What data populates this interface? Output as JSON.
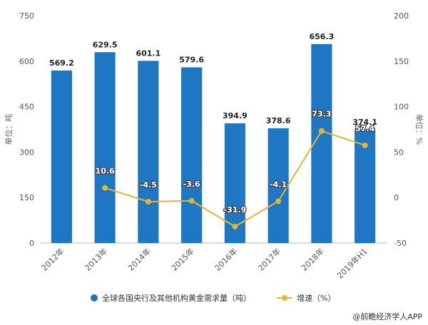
{
  "chart_data": {
    "type": "bar",
    "categories": [
      "2012年",
      "2013年",
      "2014年",
      "2015年",
      "2016年",
      "2017年",
      "2018年",
      "2019年H1"
    ],
    "series": [
      {
        "name": "全球各国央行及其他机构黄金需求量（吨）",
        "type": "bar",
        "axis": "left",
        "values": [
          569.2,
          629.5,
          601.1,
          579.6,
          394.9,
          378.6,
          656.3,
          374.1
        ],
        "labels": [
          "569.2",
          "629.5",
          "601.1",
          "579.6",
          "394.9",
          "378.6",
          "656.3",
          "374.1"
        ]
      },
      {
        "name": "增速（%）",
        "type": "line",
        "axis": "right",
        "values": [
          null,
          10.6,
          -4.5,
          -3.6,
          -31.9,
          -4.1,
          73.3,
          57.4
        ],
        "labels": [
          "",
          "10.6",
          "-4.5",
          "-3.6",
          "-31.9",
          "-4.1",
          "73.3",
          "57.4"
        ]
      }
    ],
    "ylabel": "单位：吨",
    "ylabel_right": "单位：%",
    "ylim": [
      0,
      750
    ],
    "ylim_right": [
      -50,
      200
    ],
    "yticks": [
      "0",
      "150",
      "300",
      "450",
      "600",
      "750"
    ],
    "yticks_right": [
      "-50",
      "0",
      "50",
      "100",
      "150",
      "200"
    ],
    "grid": false,
    "legend_position": "bottom",
    "colors": {
      "bar": "#1f77c4",
      "line": "#e3b534",
      "axis": "#bbbbbb"
    }
  },
  "credit": "@前瞻经济学人APP"
}
